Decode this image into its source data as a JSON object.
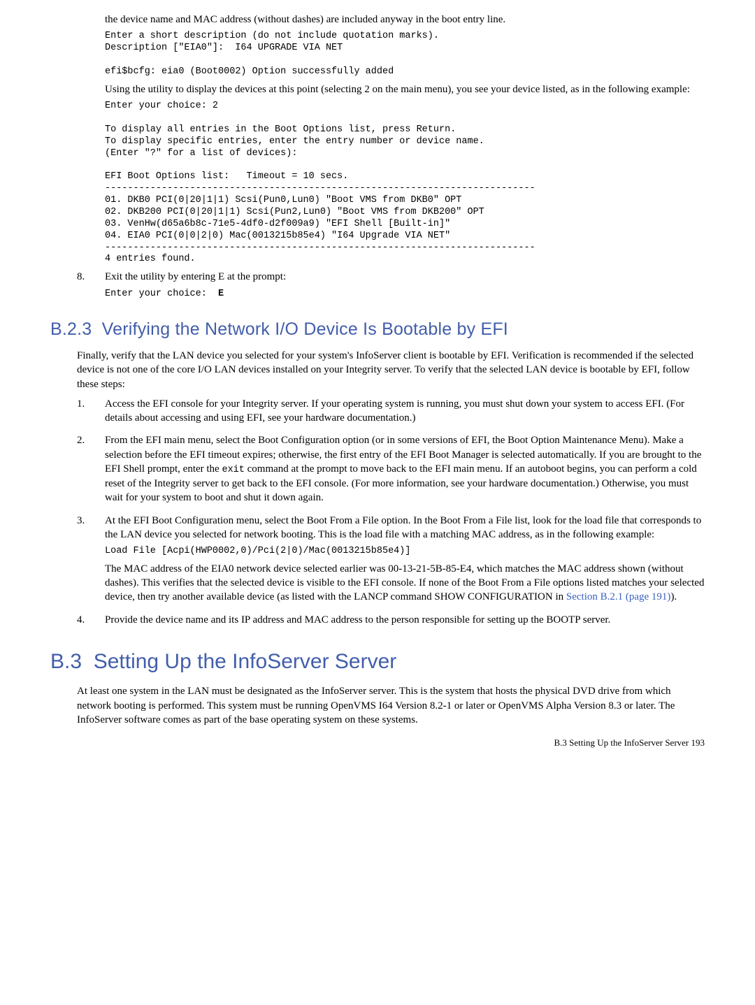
{
  "top": {
    "para1": "the device name and MAC address (without dashes) are included anyway in the boot entry line.",
    "code1": "Enter a short description (do not include quotation marks).\nDescription [\"EIA0\"]:  I64 UPGRADE VIA NET\n\nefi$bcfg: eia0 (Boot0002) Option successfully added",
    "para2": "Using the utility to display the devices at this point (selecting 2 on the main menu), you see your device listed, as in the following example:",
    "code2": "Enter your choice: 2\n\nTo display all entries in the Boot Options list, press Return.\nTo display specific entries, enter the entry number or device name.\n(Enter \"?\" for a list of devices):\n\nEFI Boot Options list:   Timeout = 10 secs.\n----------------------------------------------------------------------------\n01. DKB0 PCI(0|20|1|1) Scsi(Pun0,Lun0) \"Boot VMS from DKB0\" OPT\n02. DKB200 PCI(0|20|1|1) Scsi(Pun2,Lun0) \"Boot VMS from DKB200\" OPT\n03. VenHw(d65a6b8c-71e5-4df0-d2f009a9) \"EFI Shell [Built-in]\"\n04. EIA0 PCI(0|0|2|0) Mac(0013215b85e4) \"I64 Upgrade VIA NET\"\n----------------------------------------------------------------------------\n4 entries found."
  },
  "step8": {
    "num": "8.",
    "text": "Exit the utility by entering E at the prompt:",
    "code": "Enter your choice:  ",
    "codebold": "E"
  },
  "b23": {
    "num": "B.2.3",
    "title": "Verifying the Network I/O Device Is Bootable by EFI",
    "intro": "Finally, verify that the LAN device you selected for your system's InfoServer client is bootable by EFI. Verification is recommended if the selected device is not one of the core I/O LAN devices installed on your Integrity server. To verify that the selected LAN device is bootable by EFI, follow these steps:",
    "s1": {
      "num": "1.",
      "text": "Access the EFI console for your Integrity server. If your operating system is running, you must shut down your system to access EFI. (For details about accessing and using EFI, see your hardware documentation.)"
    },
    "s2": {
      "num": "2.",
      "text_a": "From the EFI main menu, select the Boot Configuration option (or in some versions of EFI, the Boot Option Maintenance Menu). Make a selection before the EFI timeout expires; otherwise, the first entry of the EFI Boot Manager is selected automatically. If you are brought to the EFI Shell prompt, enter the ",
      "code": "exit",
      "text_b": " command at the prompt to move back to the EFI main menu. If an autoboot begins, you can perform a cold reset of the Integrity server to get back to the EFI console. (For more information, see your hardware documentation.) Otherwise, you must wait for your system to boot and shut it down again."
    },
    "s3": {
      "num": "3.",
      "p1": "At the EFI Boot Configuration menu, select the Boot From a File option. In the Boot From a File list, look for the load file that corresponds to the LAN device you selected for network booting. This is the load file with a matching MAC address, as in the following example:",
      "code": "Load File [Acpi(HWP0002,0)/Pci(2|0)/Mac(0013215b85e4)]",
      "p2_a": "The MAC address of the EIA0 network device selected earlier was 00-13-21-5B-85-E4, which matches the MAC address shown (without dashes). This verifies that the selected device is visible to the EFI console. If none of the Boot From a File options listed matches your selected device, then try another available device (as listed with the LANCP command SHOW CONFIGURATION in ",
      "link": "Section B.2.1 (page 191)",
      "p2_b": ")."
    },
    "s4": {
      "num": "4.",
      "text": "Provide the device name and its IP address and MAC address to the person responsible for setting up the BOOTP server."
    }
  },
  "b3": {
    "num": "B.3",
    "title": "Setting Up the InfoServer Server",
    "para": "At least one system in the LAN must be designated as the InfoServer server. This is the system that hosts the physical DVD drive from which network booting is performed. This system must be running OpenVMS I64 Version 8.2-1 or later or OpenVMS Alpha Version 8.3 or later. The InfoServer software comes as part of the base operating system on these systems."
  },
  "footer": "B.3 Setting Up the InfoServer Server    193"
}
